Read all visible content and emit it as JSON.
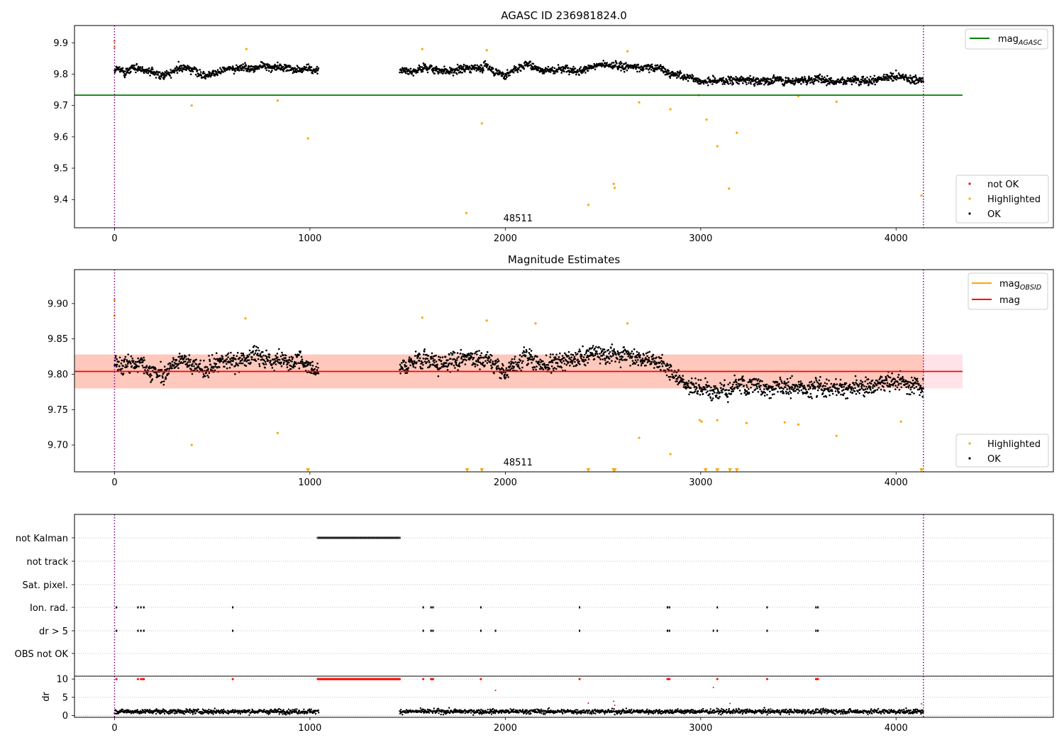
{
  "colors": {
    "ok": "#000000",
    "highlighted": "#ffa500",
    "not_ok": "#ff0000",
    "mag_agasc_line": "#008000",
    "mag_line": "#ff0000",
    "mag_obsid_line": "#ffa500",
    "band_obsid": "#ffa07a",
    "band_mag": "#ffc0cb",
    "obsid_boundary": "#800080",
    "grid": "#b0b0b0"
  },
  "chart_data": [
    {
      "id": "agasc",
      "type": "scatter",
      "title": "AGASC ID 236981824.0",
      "xlim": [
        -205,
        4805
      ],
      "ylim": [
        9.31,
        9.955
      ],
      "xticks": [
        0,
        1000,
        2000,
        3000,
        4000
      ],
      "yticks": [
        9.4,
        9.5,
        9.6,
        9.7,
        9.8,
        9.9
      ],
      "obsid_label": "48511",
      "obsid_label_x": 2065,
      "obsid_boundaries": [
        0,
        4140
      ],
      "mag_agasc": {
        "value": 9.733,
        "x_range": [
          -205,
          4340
        ]
      },
      "legend_lines": [
        {
          "label": "mag",
          "subscript": "AGASC"
        }
      ],
      "legend_points": [
        "not OK",
        "Highlighted",
        "OK"
      ],
      "ok_segments": [
        {
          "x": [
            0,
            1045
          ],
          "levels": [
            [
              0,
              9.812
            ],
            [
              150,
              9.815
            ],
            [
              250,
              9.8
            ],
            [
              350,
              9.822
            ],
            [
              450,
              9.808
            ],
            [
              550,
              9.812
            ],
            [
              700,
              9.825
            ],
            [
              850,
              9.822
            ],
            [
              1045,
              9.812
            ]
          ]
        },
        {
          "x": [
            1460,
            4140
          ],
          "levels": [
            [
              1460,
              9.81
            ],
            [
              1600,
              9.825
            ],
            [
              1700,
              9.81
            ],
            [
              1900,
              9.825
            ],
            [
              2000,
              9.8
            ],
            [
              2100,
              9.83
            ],
            [
              2200,
              9.815
            ],
            [
              2400,
              9.822
            ],
            [
              2600,
              9.828
            ],
            [
              2800,
              9.818
            ],
            [
              2900,
              9.795
            ],
            [
              3000,
              9.78
            ],
            [
              3500,
              9.782
            ],
            [
              4140,
              9.785
            ]
          ]
        }
      ],
      "highlighted": [
        [
          0,
          9.905
        ],
        [
          0,
          9.885
        ],
        [
          395,
          9.7
        ],
        [
          675,
          9.88
        ],
        [
          835,
          9.716
        ],
        [
          990,
          9.595
        ],
        [
          1575,
          9.88
        ],
        [
          1800,
          9.357
        ],
        [
          1880,
          9.643
        ],
        [
          1905,
          9.876
        ],
        [
          2425,
          9.383
        ],
        [
          2555,
          9.45
        ],
        [
          2560,
          9.437
        ],
        [
          2625,
          9.873
        ],
        [
          2685,
          9.71
        ],
        [
          2845,
          9.688
        ],
        [
          3030,
          9.655
        ],
        [
          3085,
          9.57
        ],
        [
          3145,
          9.435
        ],
        [
          3185,
          9.613
        ],
        [
          3695,
          9.712
        ],
        [
          4130,
          9.413
        ],
        [
          3500,
          9.73
        ],
        [
          2990,
          9.733
        ]
      ]
    },
    {
      "id": "estimates",
      "type": "scatter",
      "title": "Magnitude Estimates",
      "xlim": [
        -205,
        4805
      ],
      "ylim": [
        9.662,
        9.948
      ],
      "xticks": [
        0,
        1000,
        2000,
        3000,
        4000
      ],
      "yticks": [
        9.7,
        9.75,
        9.8,
        9.85,
        9.9
      ],
      "ytick_labels": [
        "9.70",
        "9.75",
        "9.80",
        "9.85",
        "9.90"
      ],
      "obsid_label": "48511",
      "obsid_label_x": 2065,
      "obsid_boundaries": [
        0,
        4140
      ],
      "mag": {
        "value": 9.804,
        "band": [
          9.78,
          9.828
        ],
        "x_range": [
          -205,
          4340
        ]
      },
      "mag_obsid": {
        "value": 9.804,
        "band": [
          9.78,
          9.828
        ],
        "x_range": [
          -205,
          4140
        ]
      },
      "legend_lines": [
        {
          "label": "mag",
          "subscript": "OBSID"
        },
        {
          "label": "mag",
          "subscript": ""
        }
      ],
      "legend_points": [
        "Highlighted",
        "OK"
      ],
      "highlighted": [
        [
          0,
          9.905
        ],
        [
          0,
          9.883
        ],
        [
          670,
          9.879
        ],
        [
          395,
          9.7
        ],
        [
          835,
          9.717
        ],
        [
          1575,
          9.88
        ],
        [
          1905,
          9.876
        ],
        [
          2625,
          9.872
        ],
        [
          2685,
          9.71
        ],
        [
          2845,
          9.687
        ],
        [
          2995,
          9.735
        ],
        [
          3005,
          9.733
        ],
        [
          3085,
          9.735
        ],
        [
          3235,
          9.731
        ],
        [
          3430,
          9.732
        ],
        [
          3500,
          9.729
        ],
        [
          3695,
          9.713
        ],
        [
          4025,
          9.733
        ],
        [
          2155,
          9.872
        ]
      ],
      "below_axis_markers": [
        990,
        1805,
        1880,
        2425,
        2555,
        2560,
        3025,
        3085,
        3150,
        3185,
        4130
      ]
    },
    {
      "id": "flags",
      "type": "scatter",
      "xlim": [
        -205,
        4805
      ],
      "xticks": [
        0,
        1000,
        2000,
        3000,
        4000
      ],
      "obsid_boundaries": [
        0,
        4140
      ],
      "flag_labels": [
        "not Kalman",
        "not track",
        "Sat. pixel.",
        "Ion. rad.",
        "dr > 5",
        "OBS not OK"
      ],
      "not_kalman_range": [
        1040,
        1460
      ],
      "ion_rad_x": [
        10,
        120,
        135,
        150,
        605,
        1580,
        1620,
        1630,
        1875,
        2380,
        2830,
        2840,
        3085,
        3340,
        3590,
        3600
      ],
      "dr5_x": [
        10,
        120,
        135,
        150,
        605,
        1580,
        1620,
        1630,
        1875,
        1950,
        2380,
        2830,
        2840,
        3065,
        3085,
        3340,
        3590,
        3600
      ],
      "dr_ylabel": "dr",
      "dr_yticks": [
        0,
        5,
        10
      ],
      "dr_ylim": [
        -0.5,
        10.8
      ],
      "dr_segments": [
        [
          0,
          1045
        ],
        [
          1460,
          4140
        ]
      ],
      "dr_capped_x": [
        10,
        120,
        135,
        145,
        150,
        605,
        1580,
        1620,
        1625,
        1630,
        1875,
        2380,
        2830,
        2835,
        2840,
        3085,
        3340,
        3590,
        3595,
        3600
      ],
      "dr_capped_range": [
        1040,
        1460
      ],
      "dr_extra_points": [
        [
          1950,
          6.9
        ],
        [
          3065,
          7.7
        ],
        [
          2425,
          3.4
        ],
        [
          2555,
          3.9
        ],
        [
          2560,
          2.8
        ],
        [
          3150,
          3.3
        ],
        [
          4130,
          3.2
        ]
      ]
    }
  ]
}
